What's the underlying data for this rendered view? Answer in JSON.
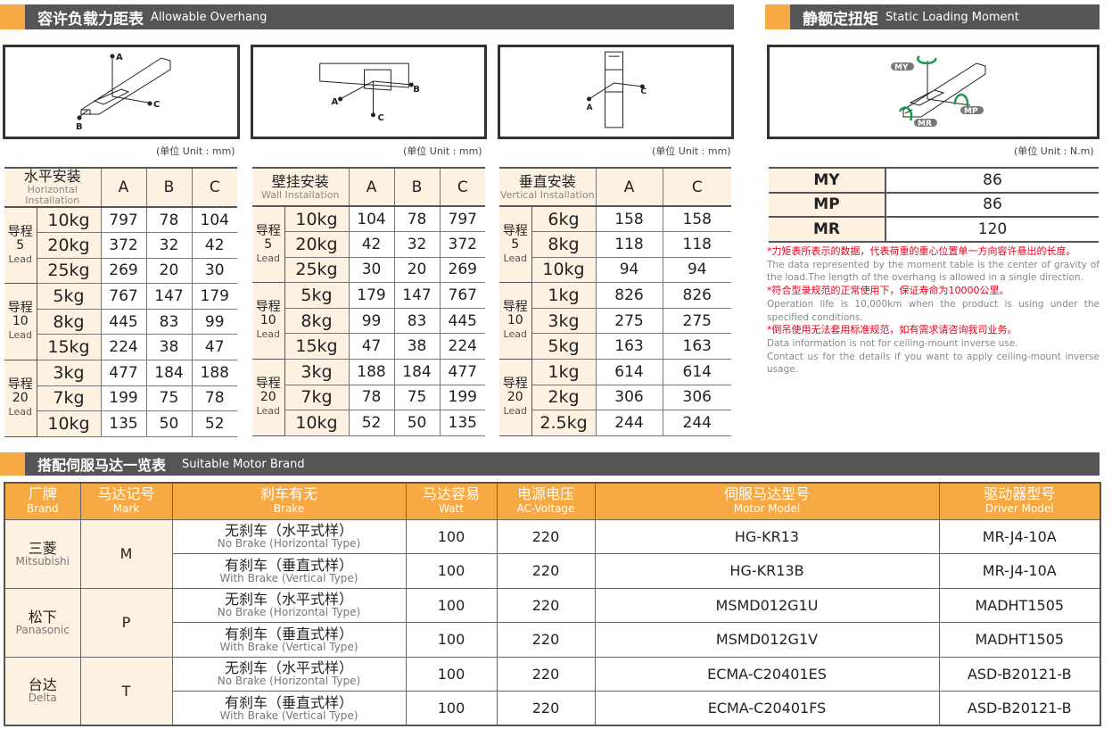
{
  "sections": {
    "overhang": {
      "zh": "容许负载力距表",
      "en": "Allowable Overhang"
    },
    "moment": {
      "zh": "静额定扭矩",
      "en": "Static Loading Moment"
    },
    "motor": {
      "zh": "搭配伺服马达一览表",
      "en": "Suitable Motor Brand"
    }
  },
  "diagram_labels": {
    "a": "A",
    "b": "B",
    "c": "C",
    "my": "MY",
    "mp": "MP",
    "mr": "MR"
  },
  "units": {
    "mm": "(单位 Unit : mm)",
    "nm": "(单位 Unit : N.m)"
  },
  "lead_zh": "导程",
  "lead_en": "Lead",
  "overhang_tables": [
    {
      "zh": "水平安装",
      "en": "Horizontal Installation",
      "cols": [
        "A",
        "B",
        "C"
      ],
      "groups": [
        {
          "lead": "5",
          "rows": [
            [
              "10kg",
              "797",
              "78",
              "104"
            ],
            [
              "20kg",
              "372",
              "32",
              "42"
            ],
            [
              "25kg",
              "269",
              "20",
              "30"
            ]
          ]
        },
        {
          "lead": "10",
          "rows": [
            [
              "5kg",
              "767",
              "147",
              "179"
            ],
            [
              "8kg",
              "445",
              "83",
              "99"
            ],
            [
              "15kg",
              "224",
              "38",
              "47"
            ]
          ]
        },
        {
          "lead": "20",
          "rows": [
            [
              "3kg",
              "477",
              "184",
              "188"
            ],
            [
              "7kg",
              "199",
              "75",
              "78"
            ],
            [
              "10kg",
              "135",
              "50",
              "52"
            ]
          ]
        }
      ]
    },
    {
      "zh": "壁挂安装",
      "en": "Wall Installation",
      "cols": [
        "A",
        "B",
        "C"
      ],
      "groups": [
        {
          "lead": "5",
          "rows": [
            [
              "10kg",
              "104",
              "78",
              "797"
            ],
            [
              "20kg",
              "42",
              "32",
              "372"
            ],
            [
              "25kg",
              "30",
              "20",
              "269"
            ]
          ]
        },
        {
          "lead": "10",
          "rows": [
            [
              "5kg",
              "179",
              "147",
              "767"
            ],
            [
              "8kg",
              "99",
              "83",
              "445"
            ],
            [
              "15kg",
              "47",
              "38",
              "224"
            ]
          ]
        },
        {
          "lead": "20",
          "rows": [
            [
              "3kg",
              "188",
              "184",
              "477"
            ],
            [
              "7kg",
              "78",
              "75",
              "199"
            ],
            [
              "10kg",
              "52",
              "50",
              "135"
            ]
          ]
        }
      ]
    },
    {
      "zh": "垂直安装",
      "en": "Vertical Installation",
      "cols": [
        "A",
        "C"
      ],
      "groups": [
        {
          "lead": "5",
          "rows": [
            [
              "6kg",
              "158",
              "158"
            ],
            [
              "8kg",
              "118",
              "118"
            ],
            [
              "10kg",
              "94",
              "94"
            ]
          ]
        },
        {
          "lead": "10",
          "rows": [
            [
              "1kg",
              "826",
              "826"
            ],
            [
              "3kg",
              "275",
              "275"
            ],
            [
              "5kg",
              "163",
              "163"
            ]
          ]
        },
        {
          "lead": "20",
          "rows": [
            [
              "1kg",
              "614",
              "614"
            ],
            [
              "2kg",
              "306",
              "306"
            ],
            [
              "2.5kg",
              "244",
              "244"
            ]
          ]
        }
      ]
    }
  ],
  "moment_table": [
    [
      "MY",
      "86"
    ],
    [
      "MP",
      "86"
    ],
    [
      "MR",
      "120"
    ]
  ],
  "notes": [
    {
      "t": "r",
      "text": "*力矩表所表示的数据，代表荷重的重心位置单一方向容许悬出的长度。"
    },
    {
      "t": "g",
      "text": "The data represented by the moment table is the center of gravity of the load.The length of the overhang is allowed in a single direction."
    },
    {
      "t": "r",
      "text": "*符合型录规范的正常使用下，保证寿命为10000公里。"
    },
    {
      "t": "g",
      "text": "Operation life is 10,000km when the product is using under the specified conditions."
    },
    {
      "t": "r",
      "text": "*倒吊使用无法套用标准规范，如有需求请咨询我司业务。"
    },
    {
      "t": "g",
      "text": "Data information is not for ceiling-mount inverse use."
    },
    {
      "t": "g",
      "text": "Contact us for the details if you want to apply ceiling-mount inverse usage."
    }
  ],
  "motor_table": {
    "headers": [
      [
        "厂牌",
        "Brand"
      ],
      [
        "马达记号",
        "Mark"
      ],
      [
        "刹车有无",
        "Brake"
      ],
      [
        "马达容易",
        "Watt"
      ],
      [
        "电源电压",
        "AC-Voltage"
      ],
      [
        "伺服马达型号",
        "Motor Model"
      ],
      [
        "驱动器型号",
        "Driver Model"
      ]
    ],
    "brands": [
      {
        "zh": "三菱",
        "en": "Mitsubishi",
        "mark": "M",
        "rows": [
          {
            "bzh": "无刹车（水平式样）",
            "ben": "No Brake (Horizontal Type)",
            "watt": "100",
            "volt": "220",
            "motor": "HG-KR13",
            "driver": "MR-J4-10A"
          },
          {
            "bzh": "有刹车（垂直式样）",
            "ben": "With Brake (Vertical Type)",
            "watt": "100",
            "volt": "220",
            "motor": "HG-KR13B",
            "driver": "MR-J4-10A"
          }
        ]
      },
      {
        "zh": "松下",
        "en": "Panasonic",
        "mark": "P",
        "rows": [
          {
            "bzh": "无刹车（水平式样）",
            "ben": "No Brake (Horizontal Type)",
            "watt": "100",
            "volt": "220",
            "motor": "MSMD012G1U",
            "driver": "MADHT1505"
          },
          {
            "bzh": "有刹车（垂直式样）",
            "ben": "With Brake (Vertical Type)",
            "watt": "100",
            "volt": "220",
            "motor": "MSMD012G1V",
            "driver": "MADHT1505"
          }
        ]
      },
      {
        "zh": "台达",
        "en": "Delta",
        "mark": "T",
        "rows": [
          {
            "bzh": "无刹车（水平式样）",
            "ben": "No Brake (Horizontal Type)",
            "watt": "100",
            "volt": "220",
            "motor": "ECMA-C20401ES",
            "driver": "ASD-B20121-B"
          },
          {
            "bzh": "有刹车（垂直式样）",
            "ben": "With Brake (Vertical Type)",
            "watt": "100",
            "volt": "220",
            "motor": "ECMA-C20401FS",
            "driver": "ASD-B20121-B"
          }
        ]
      }
    ]
  },
  "colors": {
    "accent": "#F7A944",
    "cream": "#FDF2E2",
    "bar": "#555557",
    "note_red": "#E8001C",
    "moment_arrow": "#1A9A4A"
  }
}
